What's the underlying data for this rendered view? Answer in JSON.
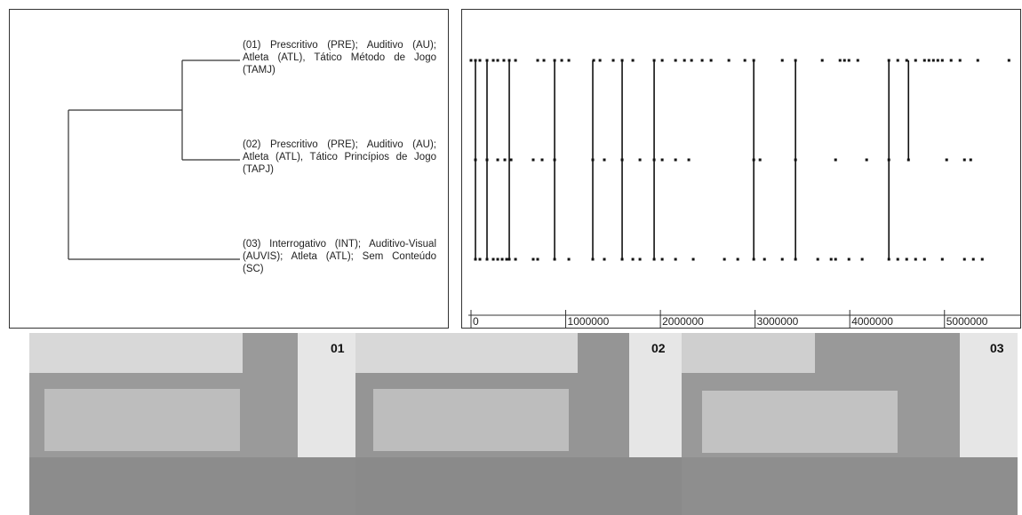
{
  "dendrogram": {
    "leaves": [
      {
        "label": "(01) Prescritivo (PRE); Auditivo (AU); Atleta (ATL), Tático Método de Jogo (TAMJ)"
      },
      {
        "label": "(02) Prescritivo (PRE); Auditivo (AU); Atleta (ATL), Tático Princípios de Jogo (TAPJ)"
      },
      {
        "label": "(03) Interrogativo (INT); Auditivo-Visual (AUVIS); Atleta (ATL); Sem Conteúdo (SC)"
      }
    ]
  },
  "timeline": {
    "xlim": [
      0,
      5800000
    ],
    "xticks": [
      0,
      1000000,
      2000000,
      3000000,
      4000000,
      5000000
    ],
    "rows": [
      [
        0,
        47000,
        94000,
        169000,
        235000,
        282000,
        347000,
        404000,
        470000,
        704000,
        770000,
        883000,
        958000,
        1033000,
        1296000,
        1362000,
        1502000,
        1596000,
        1709000,
        1934000,
        2019000,
        2160000,
        2254000,
        2329000,
        2441000,
        2535000,
        2723000,
        2892000,
        2986000,
        3287000,
        3427000,
        3709000,
        3897000,
        3944000,
        3991000,
        4085000,
        4413000,
        4507000,
        4601000,
        4695000,
        4789000,
        4836000,
        4883000,
        4930000,
        4977000,
        5070000,
        5164000,
        5352000,
        5681000
      ],
      [
        47000,
        169000,
        282000,
        357000,
        423000,
        657000,
        751000,
        883000,
        1286000,
        1408000,
        1596000,
        1784000,
        1934000,
        2019000,
        2160000,
        2300000,
        2986000,
        3052000,
        3427000,
        3850000,
        4178000,
        4413000,
        4620000,
        5023000,
        5211000,
        5277000
      ],
      [
        47000,
        94000,
        169000,
        235000,
        282000,
        329000,
        376000,
        404000,
        470000,
        657000,
        704000,
        883000,
        1033000,
        1286000,
        1408000,
        1596000,
        1709000,
        1784000,
        1934000,
        2019000,
        2160000,
        2347000,
        2676000,
        2817000,
        2986000,
        3099000,
        3287000,
        3427000,
        3662000,
        3803000,
        3850000,
        3991000,
        4131000,
        4413000,
        4507000,
        4601000,
        4695000,
        4789000,
        4977000,
        5211000,
        5305000,
        5399000
      ]
    ],
    "links": [
      {
        "time": 47000,
        "rows": [
          0,
          2
        ]
      },
      {
        "time": 169000,
        "rows": [
          0,
          2
        ]
      },
      {
        "time": 404000,
        "rows": [
          0,
          2
        ]
      },
      {
        "time": 883000,
        "rows": [
          0,
          2
        ]
      },
      {
        "time": 1286000,
        "rows": [
          0,
          2
        ]
      },
      {
        "time": 1596000,
        "rows": [
          0,
          2
        ]
      },
      {
        "time": 1934000,
        "rows": [
          0,
          2
        ]
      },
      {
        "time": 2986000,
        "rows": [
          0,
          2
        ]
      },
      {
        "time": 3427000,
        "rows": [
          0,
          2
        ]
      },
      {
        "time": 4413000,
        "rows": [
          0,
          2
        ]
      },
      {
        "time": 4620000,
        "rows": [
          0,
          1
        ]
      }
    ]
  },
  "photos": [
    {
      "label": "01"
    },
    {
      "label": "02"
    },
    {
      "label": "03"
    }
  ]
}
